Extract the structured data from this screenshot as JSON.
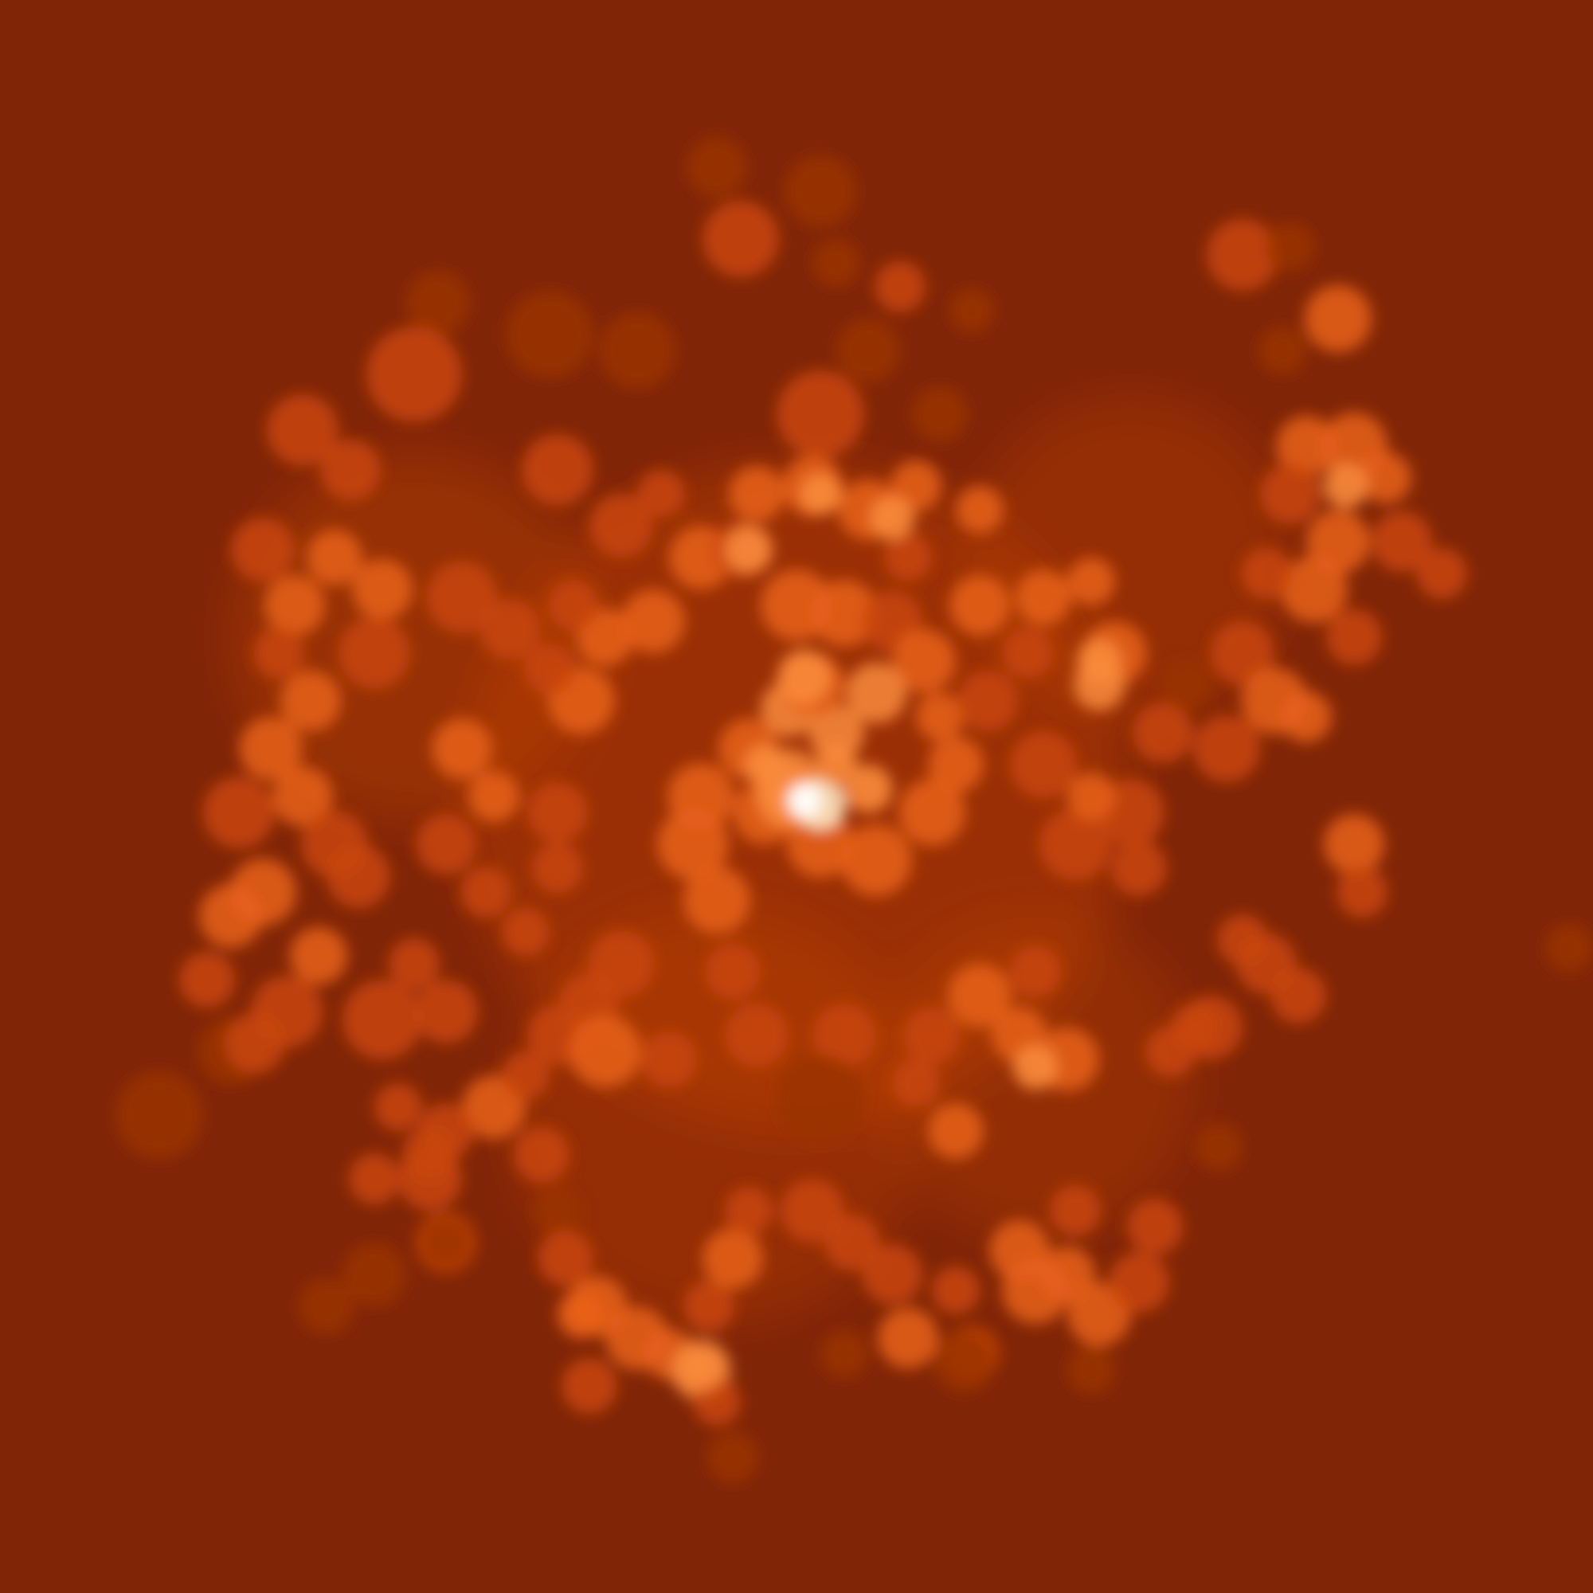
{
  "colors": {
    "background": "#812507",
    "dim": "#9a3206",
    "mid": "#c94508",
    "bright": "#e8601a",
    "hot": "#f98a3c",
    "core": "#fde4c0"
  }
}
